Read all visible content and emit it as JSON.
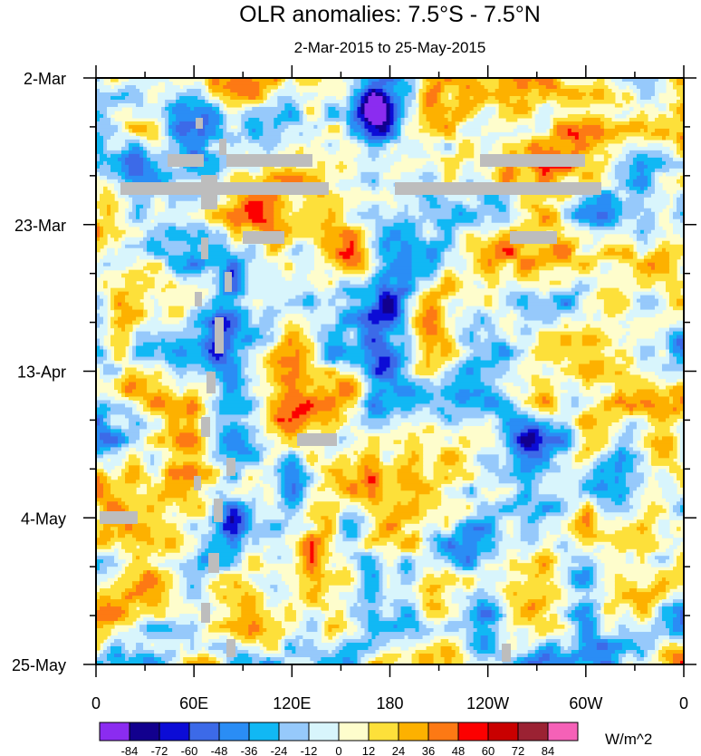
{
  "chart_data": {
    "type": "heatmap",
    "title": "OLR anomalies: 7.5°S - 7.5°N",
    "subtitle": "2-Mar-2015 to 25-May-2015",
    "x_ticks": [
      "0",
      "60E",
      "120E",
      "180",
      "120W",
      "60W",
      "0"
    ],
    "y_ticks": [
      "2-Mar",
      "23-Mar",
      "13-Apr",
      "4-May",
      "25-May"
    ],
    "colorbar": {
      "units": "W/m^2",
      "levels": [
        "-84",
        "-72",
        "-60",
        "-48",
        "-36",
        "-24",
        "-12",
        "0",
        "12",
        "24",
        "36",
        "48",
        "60",
        "72",
        "84"
      ],
      "colors": [
        "#8b2cf0",
        "#12008e",
        "#0c0cd6",
        "#3c6ae8",
        "#2a8df5",
        "#11b8f4",
        "#96c9fb",
        "#d8f5fc",
        "#fefdcc",
        "#fde03a",
        "#fdb100",
        "#fd7914",
        "#fc0000",
        "#c90000",
        "#9b2233",
        "#f561b7"
      ]
    },
    "value_range": [
      -96,
      96
    ]
  }
}
